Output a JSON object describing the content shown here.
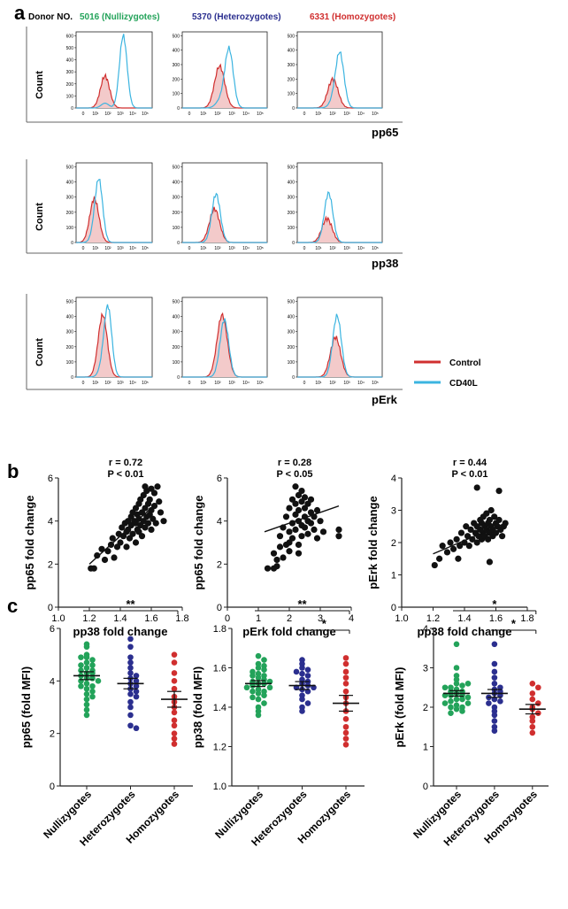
{
  "colors": {
    "green": "#23a35a",
    "blue": "#2b2f8f",
    "red": "#d02f2f",
    "cyan": "#3bb4e0",
    "control_fill": "#f3caca"
  },
  "panel_a": {
    "letter": "a",
    "donor_label": "Donor NO.",
    "donors": [
      {
        "label": "5016 (Nullizygotes)",
        "color": "#23a35a"
      },
      {
        "label": "5370 (Heterozygotes)",
        "color": "#2b2f8f"
      },
      {
        "label": "6331 (Homozygotes)",
        "color": "#d02f2f"
      }
    ],
    "ylabel": "Count",
    "rows": [
      {
        "marker": "pp65",
        "yticks": [
          [
            "0",
            "100",
            "200",
            "300",
            "400",
            "500",
            "600"
          ],
          [
            "0",
            "100",
            "200",
            "300",
            "400",
            "500"
          ],
          [
            "0",
            "100",
            "200",
            "300",
            "400",
            "500"
          ]
        ]
      },
      {
        "marker": "pp38",
        "yticks": [
          [
            "0",
            "100",
            "200",
            "300",
            "400",
            "500"
          ],
          [
            "0",
            "100",
            "200",
            "300",
            "400",
            "500"
          ],
          [
            "0",
            "100",
            "200",
            "300",
            "400",
            "500"
          ]
        ]
      },
      {
        "marker": "pErk",
        "yticks": [
          [
            "0",
            "100",
            "200",
            "300",
            "400",
            "500"
          ],
          [
            "0",
            "100",
            "200",
            "300",
            "400",
            "500"
          ],
          [
            "0",
            "100",
            "200",
            "300",
            "400",
            "500"
          ]
        ]
      }
    ],
    "xticks": [
      "0",
      "10¹",
      "10²",
      "10³",
      "10⁴",
      "10⁵"
    ],
    "legend": [
      {
        "label": "Control",
        "color": "#d02f2f"
      },
      {
        "label": "CD40L",
        "color": "#3bb4e0"
      }
    ]
  },
  "panel_b": {
    "letter": "b",
    "plots": [
      {
        "r": "r = 0.72",
        "p": "P < 0.01",
        "xlabel": "pp38 fold change",
        "ylabel": "pp65 fold change"
      },
      {
        "r": "r = 0.28",
        "p": "P < 0.05",
        "xlabel": "pErk fold change",
        "ylabel": "pp65 fold change"
      },
      {
        "r": "r = 0.44",
        "p": "P < 0.01",
        "xlabel": "pp38 fold change",
        "ylabel": "pErk fold change"
      }
    ]
  },
  "panel_c": {
    "letter": "c",
    "categories": [
      "Nullizygotes",
      "Heterozygotes",
      "Homozygotes"
    ],
    "plots": [
      {
        "ylabel": "pp65 (fold MFI)",
        "sig": [
          "**"
        ]
      },
      {
        "ylabel": "pp38 (fold MFI)",
        "sig": [
          "**",
          "*"
        ]
      },
      {
        "ylabel": "pErk (fold MFI)",
        "sig": [
          "*",
          "*"
        ]
      }
    ]
  },
  "chart_data": [
    {
      "type": "scatter",
      "panel": "b-1",
      "xlabel": "pp38 fold change",
      "ylabel": "pp65 fold change",
      "xlim": [
        1.0,
        1.8
      ],
      "ylim": [
        0,
        6
      ],
      "xticks": [
        "1.0",
        "1.2",
        "1.4",
        "1.6",
        "1.8"
      ],
      "yticks": [
        "0",
        "2",
        "4",
        "6"
      ],
      "annotation": [
        "r = 0.72",
        "P < 0.01"
      ],
      "fit": [
        [
          1.2,
          2.0
        ],
        [
          1.66,
          5.0
        ]
      ],
      "points": [
        [
          1.21,
          1.8
        ],
        [
          1.23,
          1.8
        ],
        [
          1.25,
          2.4
        ],
        [
          1.28,
          2.7
        ],
        [
          1.3,
          2.2
        ],
        [
          1.32,
          2.6
        ],
        [
          1.34,
          2.9
        ],
        [
          1.35,
          3.2
        ],
        [
          1.36,
          2.3
        ],
        [
          1.38,
          2.8
        ],
        [
          1.39,
          3.4
        ],
        [
          1.4,
          3.0
        ],
        [
          1.41,
          3.7
        ],
        [
          1.42,
          3.3
        ],
        [
          1.43,
          3.9
        ],
        [
          1.44,
          3.5
        ],
        [
          1.45,
          4.0
        ],
        [
          1.45,
          3.6
        ],
        [
          1.46,
          3.2
        ],
        [
          1.47,
          4.2
        ],
        [
          1.47,
          3.8
        ],
        [
          1.48,
          4.4
        ],
        [
          1.48,
          3.4
        ],
        [
          1.49,
          4.0
        ],
        [
          1.5,
          4.6
        ],
        [
          1.5,
          3.9
        ],
        [
          1.51,
          4.3
        ],
        [
          1.51,
          3.6
        ],
        [
          1.52,
          4.8
        ],
        [
          1.52,
          4.1
        ],
        [
          1.53,
          5.0
        ],
        [
          1.53,
          3.8
        ],
        [
          1.54,
          4.4
        ],
        [
          1.54,
          3.3
        ],
        [
          1.55,
          5.2
        ],
        [
          1.55,
          4.0
        ],
        [
          1.56,
          4.6
        ],
        [
          1.56,
          3.7
        ],
        [
          1.57,
          5.4
        ],
        [
          1.57,
          4.2
        ],
        [
          1.58,
          4.8
        ],
        [
          1.58,
          3.9
        ],
        [
          1.59,
          5.0
        ],
        [
          1.59,
          4.3
        ],
        [
          1.6,
          5.5
        ],
        [
          1.6,
          4.5
        ],
        [
          1.61,
          4.1
        ],
        [
          1.62,
          5.3
        ],
        [
          1.62,
          4.7
        ],
        [
          1.63,
          3.9
        ],
        [
          1.64,
          5.6
        ],
        [
          1.65,
          4.9
        ],
        [
          1.66,
          4.4
        ],
        [
          1.68,
          4.0
        ],
        [
          1.5,
          3.0
        ],
        [
          1.44,
          2.8
        ],
        [
          1.52,
          3.5
        ],
        [
          1.56,
          5.6
        ],
        [
          1.6,
          3.6
        ]
      ]
    },
    {
      "type": "scatter",
      "panel": "b-2",
      "xlabel": "pErk fold change",
      "ylabel": "pp65 fold change",
      "xlim": [
        0,
        4
      ],
      "ylim": [
        0,
        6
      ],
      "xticks": [
        "0",
        "1",
        "2",
        "3",
        "4"
      ],
      "yticks": [
        "0",
        "2",
        "4",
        "6"
      ],
      "annotation": [
        "r = 0.28",
        "P < 0.05"
      ],
      "fit": [
        [
          1.2,
          3.5
        ],
        [
          3.6,
          4.7
        ]
      ],
      "points": [
        [
          1.3,
          1.8
        ],
        [
          1.5,
          1.8
        ],
        [
          1.5,
          2.5
        ],
        [
          1.6,
          2.2
        ],
        [
          1.7,
          2.8
        ],
        [
          1.7,
          3.3
        ],
        [
          1.8,
          2.3
        ],
        [
          1.8,
          3.7
        ],
        [
          1.9,
          2.9
        ],
        [
          1.9,
          4.2
        ],
        [
          2.0,
          3.5
        ],
        [
          2.0,
          4.6
        ],
        [
          2.0,
          2.6
        ],
        [
          2.1,
          3.9
        ],
        [
          2.1,
          5.0
        ],
        [
          2.1,
          3.2
        ],
        [
          2.2,
          4.3
        ],
        [
          2.2,
          4.8
        ],
        [
          2.2,
          3.6
        ],
        [
          2.3,
          5.2
        ],
        [
          2.3,
          4.0
        ],
        [
          2.3,
          2.9
        ],
        [
          2.3,
          4.5
        ],
        [
          2.4,
          5.4
        ],
        [
          2.4,
          3.8
        ],
        [
          2.4,
          4.9
        ],
        [
          2.4,
          3.3
        ],
        [
          2.5,
          4.2
        ],
        [
          2.5,
          5.1
        ],
        [
          2.5,
          3.7
        ],
        [
          2.5,
          4.6
        ],
        [
          2.6,
          4.0
        ],
        [
          2.6,
          3.4
        ],
        [
          2.6,
          4.8
        ],
        [
          2.7,
          4.4
        ],
        [
          2.7,
          3.9
        ],
        [
          2.7,
          5.0
        ],
        [
          2.8,
          4.2
        ],
        [
          2.8,
          3.6
        ],
        [
          2.9,
          4.5
        ],
        [
          2.9,
          3.2
        ],
        [
          3.0,
          4.0
        ],
        [
          3.1,
          3.5
        ],
        [
          3.6,
          3.6
        ],
        [
          3.6,
          3.3
        ],
        [
          2.2,
          5.6
        ],
        [
          2.0,
          3.0
        ],
        [
          1.6,
          1.9
        ],
        [
          2.3,
          2.5
        ]
      ]
    },
    {
      "type": "scatter",
      "panel": "b-3",
      "xlabel": "pp38 fold change",
      "ylabel": "pErk fold change",
      "xlim": [
        1.0,
        1.8
      ],
      "ylim": [
        0,
        4
      ],
      "xticks": [
        "1.0",
        "1.2",
        "1.4",
        "1.6",
        "1.8"
      ],
      "yticks": [
        "0",
        "1",
        "2",
        "3",
        "4"
      ],
      "annotation": [
        "r = 0.44",
        "P < 0.01"
      ],
      "fit": [
        [
          1.2,
          1.65
        ],
        [
          1.66,
          2.6
        ]
      ],
      "points": [
        [
          1.21,
          1.3
        ],
        [
          1.24,
          1.5
        ],
        [
          1.26,
          1.9
        ],
        [
          1.29,
          1.7
        ],
        [
          1.31,
          2.0
        ],
        [
          1.33,
          1.8
        ],
        [
          1.35,
          2.1
        ],
        [
          1.37,
          1.9
        ],
        [
          1.38,
          2.3
        ],
        [
          1.4,
          2.0
        ],
        [
          1.41,
          2.5
        ],
        [
          1.42,
          2.2
        ],
        [
          1.43,
          1.9
        ],
        [
          1.44,
          2.4
        ],
        [
          1.45,
          2.1
        ],
        [
          1.46,
          2.6
        ],
        [
          1.47,
          2.3
        ],
        [
          1.48,
          2.0
        ],
        [
          1.48,
          2.5
        ],
        [
          1.49,
          2.2
        ],
        [
          1.5,
          2.7
        ],
        [
          1.5,
          2.4
        ],
        [
          1.51,
          2.1
        ],
        [
          1.51,
          2.6
        ],
        [
          1.52,
          2.3
        ],
        [
          1.52,
          2.8
        ],
        [
          1.53,
          2.5
        ],
        [
          1.53,
          2.2
        ],
        [
          1.54,
          2.4
        ],
        [
          1.54,
          2.9
        ],
        [
          1.55,
          2.6
        ],
        [
          1.55,
          2.1
        ],
        [
          1.56,
          2.3
        ],
        [
          1.56,
          2.7
        ],
        [
          1.57,
          2.5
        ],
        [
          1.57,
          3.0
        ],
        [
          1.58,
          2.2
        ],
        [
          1.58,
          2.4
        ],
        [
          1.59,
          2.8
        ],
        [
          1.6,
          2.6
        ],
        [
          1.6,
          2.3
        ],
        [
          1.61,
          2.5
        ],
        [
          1.62,
          2.7
        ],
        [
          1.63,
          2.4
        ],
        [
          1.64,
          2.2
        ],
        [
          1.65,
          2.5
        ],
        [
          1.66,
          2.6
        ],
        [
          1.48,
          3.7
        ],
        [
          1.62,
          3.6
        ],
        [
          1.36,
          1.5
        ],
        [
          1.56,
          1.4
        ]
      ]
    },
    {
      "type": "scatter",
      "panel": "c-1",
      "ylabel": "pp65 (fold MFI)",
      "ylim": [
        0,
        6
      ],
      "yticks": [
        "0",
        "2",
        "4",
        "6"
      ],
      "categories": [
        "Nullizygotes",
        "Heterozygotes",
        "Homozygotes"
      ],
      "series": [
        {
          "category": "Nullizygotes",
          "mean": 4.2,
          "sem": 0.15,
          "values": [
            5.4,
            5.3,
            5.0,
            4.9,
            4.8,
            4.7,
            4.6,
            4.5,
            4.4,
            4.4,
            4.3,
            4.3,
            4.2,
            4.1,
            4.1,
            4.0,
            4.0,
            3.9,
            3.8,
            3.7,
            3.6,
            3.5,
            3.4,
            3.3,
            3.1,
            2.9,
            2.7,
            4.6,
            4.9,
            3.8
          ]
        },
        {
          "category": "Heterozygotes",
          "mean": 3.9,
          "sem": 0.2,
          "values": [
            5.6,
            5.3,
            4.9,
            4.7,
            4.5,
            4.3,
            4.2,
            4.1,
            4.0,
            3.9,
            3.8,
            3.7,
            3.6,
            3.5,
            3.4,
            3.2,
            3.0,
            2.7,
            2.3,
            2.2
          ]
        },
        {
          "category": "Homozygotes",
          "mean": 3.3,
          "sem": 0.3,
          "values": [
            5.0,
            4.7,
            4.3,
            4.0,
            3.7,
            3.4,
            3.2,
            3.0,
            2.8,
            2.5,
            2.3,
            2.0,
            1.8,
            1.6
          ]
        }
      ],
      "significance": [
        {
          "between": [
            "Nullizygotes",
            "Homozygotes"
          ],
          "label": "**"
        }
      ]
    },
    {
      "type": "scatter",
      "panel": "c-2",
      "ylabel": "pp38 (fold MFI)",
      "ylim": [
        1.0,
        1.8
      ],
      "yticks": [
        "1.0",
        "1.2",
        "1.4",
        "1.6",
        "1.8"
      ],
      "categories": [
        "Nullizygotes",
        "Heterozygotes",
        "Homozygotes"
      ],
      "series": [
        {
          "category": "Nullizygotes",
          "mean": 1.52,
          "sem": 0.015,
          "values": [
            1.66,
            1.64,
            1.62,
            1.61,
            1.6,
            1.59,
            1.58,
            1.57,
            1.56,
            1.55,
            1.54,
            1.53,
            1.53,
            1.52,
            1.52,
            1.51,
            1.5,
            1.5,
            1.49,
            1.48,
            1.47,
            1.46,
            1.45,
            1.44,
            1.42,
            1.4,
            1.38,
            1.36,
            1.56,
            1.48
          ]
        },
        {
          "category": "Heterozygotes",
          "mean": 1.51,
          "sem": 0.02,
          "values": [
            1.64,
            1.62,
            1.6,
            1.59,
            1.58,
            1.57,
            1.56,
            1.54,
            1.53,
            1.52,
            1.51,
            1.5,
            1.49,
            1.48,
            1.46,
            1.44,
            1.42,
            1.4,
            1.38,
            1.5
          ]
        },
        {
          "category": "Homozygotes",
          "mean": 1.42,
          "sem": 0.04,
          "values": [
            1.65,
            1.62,
            1.58,
            1.55,
            1.52,
            1.48,
            1.45,
            1.42,
            1.38,
            1.34,
            1.3,
            1.27,
            1.24,
            1.21
          ]
        }
      ],
      "significance": [
        {
          "between": [
            "Nullizygotes",
            "Homozygotes"
          ],
          "label": "**"
        },
        {
          "between": [
            "Heterozygotes",
            "Homozygotes"
          ],
          "label": "*"
        }
      ]
    },
    {
      "type": "scatter",
      "panel": "c-3",
      "ylabel": "pErk (fold MFI)",
      "ylim": [
        0,
        4
      ],
      "yticks": [
        "0",
        "1",
        "2",
        "3",
        "4"
      ],
      "categories": [
        "Nullizygotes",
        "Heterozygotes",
        "Homozygotes"
      ],
      "series": [
        {
          "category": "Nullizygotes",
          "mean": 2.35,
          "sem": 0.07,
          "values": [
            3.6,
            3.0,
            2.8,
            2.7,
            2.6,
            2.55,
            2.5,
            2.45,
            2.4,
            2.4,
            2.35,
            2.3,
            2.3,
            2.25,
            2.2,
            2.2,
            2.15,
            2.1,
            2.05,
            2.0,
            1.95,
            1.9,
            1.85,
            2.6,
            2.5,
            2.3,
            2.1,
            2.0
          ]
        },
        {
          "category": "Heterozygotes",
          "mean": 2.35,
          "sem": 0.1,
          "values": [
            3.6,
            3.1,
            2.9,
            2.75,
            2.6,
            2.5,
            2.45,
            2.4,
            2.35,
            2.3,
            2.25,
            2.2,
            2.15,
            2.1,
            2.0,
            1.9,
            1.8,
            1.65,
            1.5,
            1.4
          ]
        },
        {
          "category": "Homozygotes",
          "mean": 1.95,
          "sem": 0.12,
          "values": [
            2.6,
            2.5,
            2.35,
            2.2,
            2.1,
            2.0,
            1.95,
            1.85,
            1.75,
            1.65,
            1.5,
            1.35
          ]
        }
      ],
      "significance": [
        {
          "between": [
            "Nullizygotes",
            "Homozygotes"
          ],
          "label": "*"
        },
        {
          "between": [
            "Heterozygotes",
            "Homozygotes"
          ],
          "label": "*"
        }
      ]
    }
  ]
}
